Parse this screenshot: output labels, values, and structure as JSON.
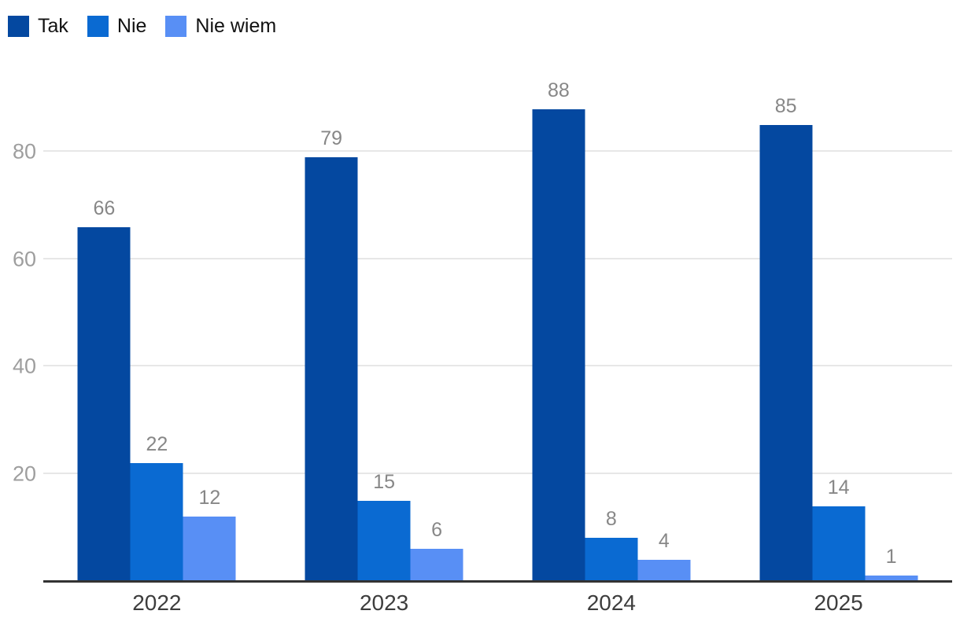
{
  "chart_data": {
    "type": "bar",
    "title": "",
    "categories": [
      "2022",
      "2023",
      "2024",
      "2025"
    ],
    "series": [
      {
        "name": "Tak",
        "color": "#0448A0",
        "values": [
          66,
          79,
          88,
          85
        ]
      },
      {
        "name": "Nie",
        "color": "#0A6AD2",
        "values": [
          22,
          15,
          8,
          14
        ]
      },
      {
        "name": "Nie wiem",
        "color": "#588FF5",
        "values": [
          12,
          6,
          4,
          1
        ]
      }
    ],
    "y_ticks": [
      20,
      40,
      60,
      80
    ],
    "ylim": [
      0,
      100
    ],
    "xlabel": "",
    "ylabel": "",
    "grid": true,
    "legend_position": "top-left",
    "data_labels": true
  },
  "colors": {
    "background": "#ffffff",
    "gridline": "#e7e7e7",
    "axis_line": "#333333",
    "tick_label": "#9e9e9e",
    "data_label": "#878787",
    "category_label": "#3d3d3d",
    "legend_text": "#111111"
  }
}
